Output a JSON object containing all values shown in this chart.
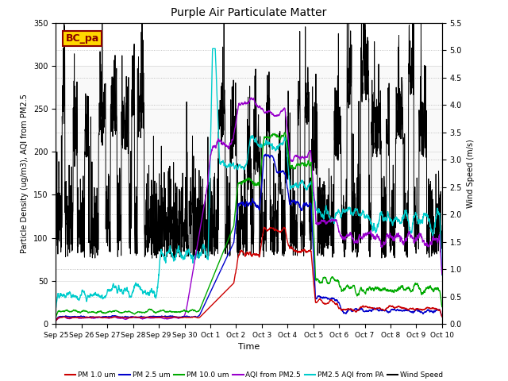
{
  "title": "Purple Air Particulate Matter",
  "xlabel": "Time",
  "ylabel_left": "Particle Density (ug/m3), AQI from PM2.5",
  "ylabel_right": "Wind Speed (m/s)",
  "ylim_left": [
    0,
    350
  ],
  "ylim_right": [
    0,
    5.5
  ],
  "yticks_left": [
    0,
    50,
    100,
    150,
    200,
    250,
    300,
    350
  ],
  "yticks_right": [
    0.0,
    0.5,
    1.0,
    1.5,
    2.0,
    2.5,
    3.0,
    3.5,
    4.0,
    4.5,
    5.0,
    5.5
  ],
  "shaded_region": [
    150,
    300
  ],
  "annotation_text": "BC_pa",
  "annotation_color": "#8B0000",
  "annotation_box_color": "#FFD700",
  "colors": {
    "pm1": "#CC0000",
    "pm25": "#0000CC",
    "pm10": "#00AA00",
    "aqi_pm25": "#9900CC",
    "pm25_pa": "#00CCCC",
    "wind": "#000000"
  },
  "legend_labels": [
    "PM 1.0 um",
    "PM 2.5 um",
    "PM 10.0 um",
    "AQI from PM2.5",
    "PM2.5 AQI from PA",
    "Wind Speed"
  ],
  "xtick_labels": [
    "Sep 25",
    "Sep 26",
    "Sep 27",
    "Sep 28",
    "Sep 29",
    "Sep 30",
    "Oct 1",
    "Oct 2",
    "Oct 3",
    "Oct 4",
    "Oct 5",
    "Oct 6",
    "Oct 7",
    "Oct 8",
    "Oct 9",
    "Oct 10"
  ],
  "n_points": 2160,
  "date_range_days": 15
}
